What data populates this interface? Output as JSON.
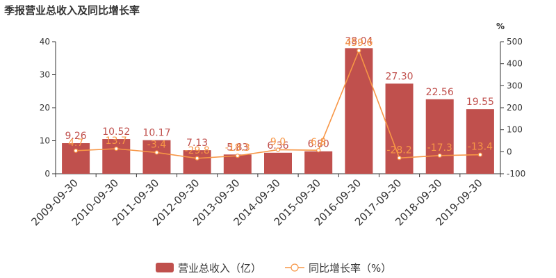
{
  "title": "季报营业总收入及同比增长率",
  "colors": {
    "bar": "#c0504d",
    "line": "#f79646",
    "axis": "#333333"
  },
  "chart_data": {
    "type": "bar",
    "title": "季报营业总收入及同比增长率",
    "categories": [
      "2009-09-30",
      "2010-09-30",
      "2011-09-30",
      "2012-09-30",
      "2013-09-30",
      "2014-09-30",
      "2015-09-30",
      "2016-09-30",
      "2017-09-30",
      "2018-09-30",
      "2019-09-30"
    ],
    "series": [
      {
        "name": "营业总收入（亿）",
        "type": "bar",
        "axis": "left",
        "values": [
          9.26,
          10.52,
          10.17,
          7.13,
          5.83,
          6.36,
          6.8,
          38.04,
          27.3,
          22.56,
          19.55
        ],
        "labels": [
          "9.26",
          "10.52",
          "10.17",
          "7.13",
          "5.83",
          "6.36",
          "6.80",
          "38.04",
          "27.30",
          "22.56",
          "19.55"
        ]
      },
      {
        "name": "同比增长率（%）",
        "type": "line",
        "axis": "right",
        "values": [
          4.7,
          13.7,
          -3.4,
          -29.8,
          -18.3,
          9.0,
          6.8,
          459.6,
          -28.2,
          -17.3,
          -13.4
        ],
        "labels": [
          "4.7",
          "13.7",
          "-3.4",
          "-29.8",
          "-18.3",
          "9.0",
          "6.8",
          "459.6",
          "-28.2",
          "-17.3",
          "-13.4"
        ]
      }
    ],
    "left_axis": {
      "min": 0,
      "max": 40,
      "ticks": [
        "0",
        "10",
        "20",
        "30",
        "40"
      ]
    },
    "right_axis": {
      "unit": "%",
      "min": -100,
      "max": 500,
      "ticks": [
        "-100",
        "0",
        "100",
        "200",
        "300",
        "400",
        "500"
      ]
    },
    "grid": false,
    "legend": "bottom"
  }
}
